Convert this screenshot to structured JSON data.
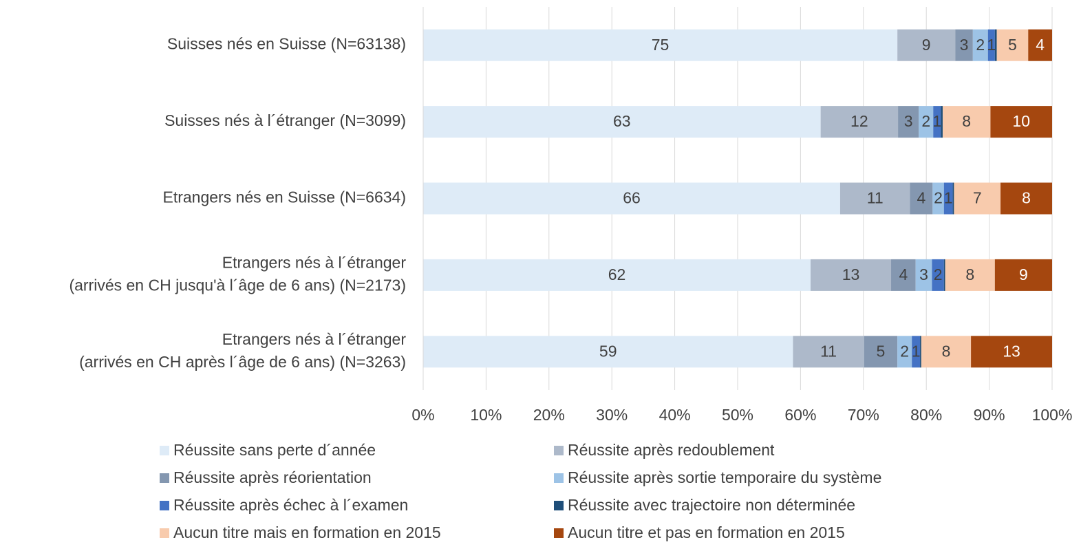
{
  "chart_data": {
    "type": "stacked-bar-horizontal",
    "categories": [
      "Suisses nés en Suisse (N=63138)",
      "Suisses nés à l´étranger (N=3099)",
      "Etrangers nés en Suisse (N=6634)",
      "Etrangers nés à l´étranger\n(arrivés en CH jusqu'à l´âge de 6 ans) (N=2173)",
      "Etrangers nés à l´étranger\n(arrivés en CH après l´âge de 6 ans) (N=3263)"
    ],
    "series": [
      {
        "name": "Réussite sans perte d´année",
        "color": "#deebf7",
        "label_color": "#404040",
        "values": [
          75.4,
          63.2,
          66.3,
          61.6,
          58.8
        ],
        "value_labels": [
          "75",
          "63",
          "66",
          "62",
          "59"
        ]
      },
      {
        "name": "Réussite après redoublement",
        "color": "#adb9ca",
        "label_color": "#404040",
        "values": [
          9.2,
          12.3,
          11.1,
          12.8,
          11.3
        ],
        "value_labels": [
          "9",
          "12",
          "11",
          "13",
          "11"
        ]
      },
      {
        "name": "Réussite après réorientation",
        "color": "#8497b0",
        "label_color": "#404040",
        "values": [
          2.8,
          3.3,
          3.6,
          3.9,
          5.3
        ],
        "value_labels": [
          "3",
          "3",
          "4",
          "4",
          "5"
        ]
      },
      {
        "name": "Réussite après sortie temporaire du système",
        "color": "#9dc3e6",
        "label_color": "#404040",
        "values": [
          2.4,
          2.3,
          1.8,
          2.6,
          2.3
        ],
        "value_labels": [
          "2",
          "2",
          "2",
          "3",
          "2"
        ]
      },
      {
        "name": "Réussite après échec à l´examen",
        "color": "#4472c4",
        "label_color": "#404040",
        "values": [
          1.1,
          1.2,
          1.4,
          1.9,
          1.3
        ],
        "value_labels": [
          "1",
          "1",
          "1",
          "2",
          "1"
        ]
      },
      {
        "name": "Réussite avec trajectoire non déterminée",
        "color": "#1f4e79",
        "label_color": "#404040",
        "values": [
          0.3,
          0.3,
          0.2,
          0.2,
          0.2
        ],
        "value_labels": [
          null,
          null,
          null,
          null,
          null
        ]
      },
      {
        "name": "Aucun titre mais en formation en 2015",
        "color": "#f8cbad",
        "label_color": "#404040",
        "values": [
          5.0,
          7.6,
          7.4,
          7.9,
          7.9
        ],
        "value_labels": [
          "5",
          "8",
          "7",
          "8",
          "8"
        ]
      },
      {
        "name": "Aucun titre et pas en formation en 2015",
        "color": "#a5470f",
        "label_color": "#ffffff",
        "values": [
          3.8,
          9.8,
          8.2,
          9.1,
          12.9
        ],
        "value_labels": [
          "4",
          "10",
          "8",
          "9",
          "13"
        ]
      }
    ],
    "xlim": [
      0,
      100
    ],
    "xticks": [
      {
        "value": 0,
        "label": "0%"
      },
      {
        "value": 10,
        "label": "10%"
      },
      {
        "value": 20,
        "label": "20%"
      },
      {
        "value": 30,
        "label": "30%"
      },
      {
        "value": 40,
        "label": "40%"
      },
      {
        "value": 50,
        "label": "50%"
      },
      {
        "value": 60,
        "label": "60%"
      },
      {
        "value": 70,
        "label": "70%"
      },
      {
        "value": 80,
        "label": "80%"
      },
      {
        "value": 90,
        "label": "90%"
      },
      {
        "value": 100,
        "label": "100%"
      }
    ],
    "grid": true,
    "legend": "bottom"
  }
}
